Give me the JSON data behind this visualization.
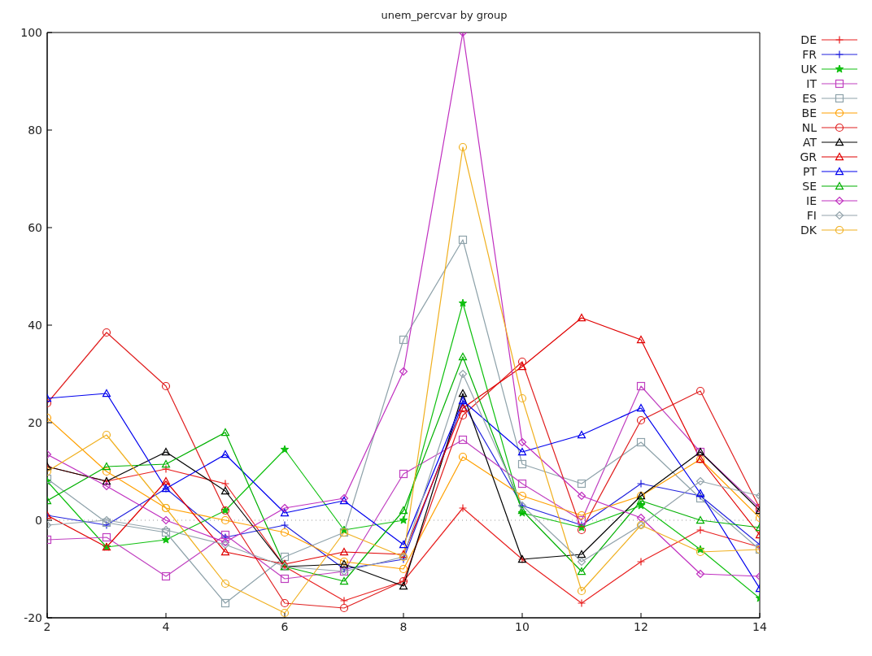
{
  "chart_data": {
    "type": "line",
    "title": "unem_percvar by group",
    "x": [
      2,
      3,
      4,
      5,
      6,
      7,
      8,
      9,
      10,
      11,
      12,
      13,
      14
    ],
    "xlim": [
      2,
      14
    ],
    "xticks": [
      2,
      4,
      6,
      8,
      10,
      12,
      14
    ],
    "ylim": [
      -20,
      100
    ],
    "yticks": [
      -20,
      0,
      20,
      40,
      60,
      80,
      100
    ],
    "grid": false,
    "legend": "top right",
    "line_style": "solid",
    "ref_lines": [
      {
        "axis": "y",
        "value": 0,
        "color": "#999999",
        "line_style": "dotted"
      }
    ],
    "series": [
      {
        "name": "DE",
        "color": "#e82020",
        "marker": "cross",
        "values": [
          11,
          8,
          10.5,
          7.5,
          -9.5,
          -16.5,
          -12.5,
          2.5,
          -8,
          -17,
          -8.5,
          -2,
          -5.5
        ]
      },
      {
        "name": "FR",
        "color": "#2222dd",
        "marker": "cross",
        "values": [
          1,
          -1,
          6.5,
          -3.5,
          -1,
          -10,
          -8,
          24,
          3,
          -1,
          7.5,
          5,
          -5
        ]
      },
      {
        "name": "UK",
        "color": "#10c010",
        "marker": "star",
        "values": [
          8,
          -5.5,
          -4,
          2,
          14.5,
          -2,
          0,
          44.5,
          1.5,
          -1.5,
          3,
          -6,
          -16
        ]
      },
      {
        "name": "IT",
        "color": "#c040c0",
        "marker": "square",
        "values": [
          -4,
          -3.5,
          -11.5,
          -3,
          -12,
          -10.5,
          9.5,
          16.5,
          7.5,
          0,
          27.5,
          14,
          2.5
        ]
      },
      {
        "name": "ES",
        "color": "#8ea2aa",
        "marker": "square",
        "values": [
          8.5,
          -0.5,
          -2.5,
          -17,
          -7.5,
          -2.5,
          37,
          57.5,
          11.5,
          7.5,
          16,
          4.5,
          -6
        ]
      },
      {
        "name": "BE",
        "color": "#ffa000",
        "marker": "circle",
        "values": [
          21,
          10,
          2.5,
          0,
          -2.5,
          -8.5,
          -10,
          13,
          5,
          1,
          5,
          12.5,
          0.5
        ]
      },
      {
        "name": "NL",
        "color": "#e02020",
        "marker": "circle",
        "values": [
          24,
          38.5,
          27.5,
          2,
          -17,
          -18,
          -12.5,
          21.5,
          32.5,
          -2,
          20.5,
          26.5,
          2.5
        ]
      },
      {
        "name": "AT",
        "color": "#000000",
        "marker": "triangle",
        "values": [
          11,
          8,
          14,
          6,
          -9.5,
          -9,
          -13.5,
          26,
          -8,
          -7,
          5,
          14,
          2
        ]
      },
      {
        "name": "GR",
        "color": "#e00000",
        "marker": "triangle",
        "values": [
          1,
          -5.5,
          8,
          -6.5,
          -9,
          -6.5,
          -7,
          23,
          31.5,
          41.5,
          37,
          12.5,
          -3
        ]
      },
      {
        "name": "PT",
        "color": "#0000ee",
        "marker": "triangle",
        "values": [
          25,
          26,
          6.5,
          13.5,
          1.5,
          4,
          -5,
          24.5,
          14,
          17.5,
          23,
          5.5,
          -14
        ]
      },
      {
        "name": "SE",
        "color": "#00b000",
        "marker": "triangle",
        "values": [
          4,
          11,
          11.5,
          18,
          -9.5,
          -12.5,
          2,
          33.5,
          2,
          -10.5,
          4,
          0,
          -1.5
        ]
      },
      {
        "name": "IE",
        "color": "#c030c0",
        "marker": "diamond",
        "values": [
          13.5,
          7,
          0,
          -4.5,
          2.5,
          4.5,
          30.5,
          100,
          16,
          5,
          0.5,
          -11,
          -11.5
        ]
      },
      {
        "name": "FI",
        "color": "#94a4ac",
        "marker": "diamond",
        "values": [
          -1,
          0,
          -2,
          -5,
          -9.5,
          -10.5,
          -7.5,
          30,
          3,
          -8.5,
          -1,
          8,
          5
        ]
      },
      {
        "name": "DK",
        "color": "#f0b020",
        "marker": "circle",
        "values": [
          10,
          17.5,
          2.5,
          -13,
          -19,
          -2.5,
          -7.5,
          76.5,
          25,
          -14.5,
          -1,
          -6.5,
          -6
        ]
      }
    ]
  }
}
